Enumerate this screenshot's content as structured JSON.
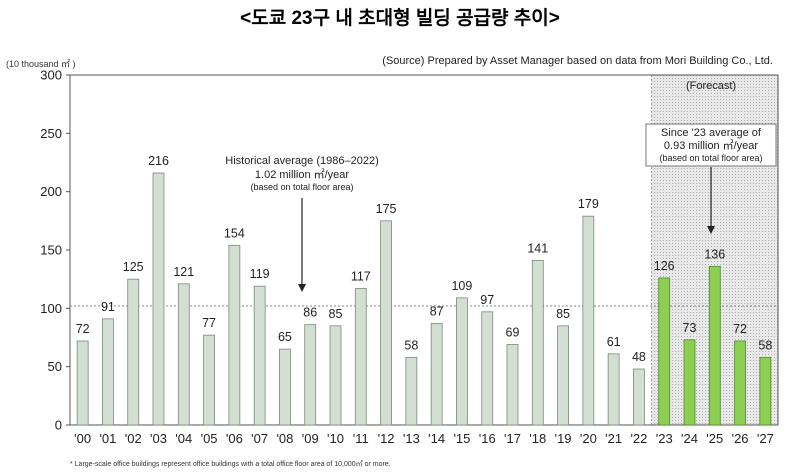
{
  "chart_data": {
    "type": "bar",
    "title": "<도쿄 23구 내 초대형 빌딩 공급량 추이>",
    "ylabel": "(10 thousand ㎡ )",
    "source": "(Source) Prepared by Asset Manager based on data from Mori Building Co., Ltd.",
    "categories": [
      "'00",
      "'01",
      "'02",
      "'03",
      "'04",
      "'05",
      "'06",
      "'07",
      "'08",
      "'09",
      "'10",
      "'11",
      "'12",
      "'13",
      "'14",
      "'15",
      "'16",
      "'17",
      "'18",
      "'19",
      "'20",
      "'21",
      "'22",
      "'23",
      "'24",
      "'25",
      "'26",
      "'27"
    ],
    "values": [
      72,
      91,
      125,
      216,
      121,
      77,
      154,
      119,
      65,
      86,
      85,
      117,
      175,
      58,
      87,
      109,
      97,
      69,
      141,
      85,
      179,
      61,
      48,
      126,
      73,
      136,
      72,
      58
    ],
    "forecast_start_index": 23,
    "forecast_label": "(Forecast)",
    "ylim": [
      0,
      300
    ],
    "yticks": [
      0,
      50,
      100,
      150,
      200,
      250,
      300
    ],
    "historical_average": 102,
    "annotations": {
      "historical_line1": "Historical average (1986–2022)",
      "historical_line2": "1.02 million ㎡/year",
      "historical_line3": "(based on total floor area)",
      "forecast_line1": "Since '23 average of",
      "forecast_line2": "0.93 million ㎡/year",
      "forecast_line3": "(based on total floor area)"
    },
    "footnote": "* Large-scale office buildings represent office buildings with a total office floor area of 10,000㎡ or more.",
    "colors": {
      "historical_bar": "#d3dfd2",
      "historical_edge": "#7a8a7a",
      "forecast_bar": "#8ccf52",
      "forecast_edge": "#4f8a2a",
      "forecast_bg": "#e9e9e9",
      "average_line": "#888888"
    }
  }
}
